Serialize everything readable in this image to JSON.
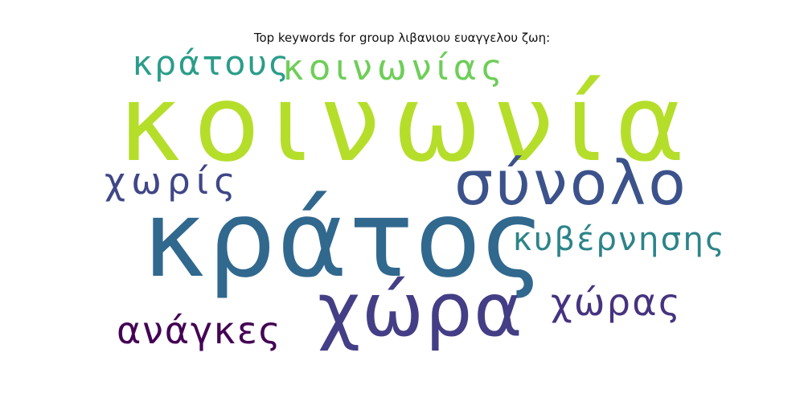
{
  "chart_data": {
    "type": "wordcloud",
    "title": "Top keywords for group λιβανιου ευαγγελου ζωη:",
    "words": [
      {
        "text": "κοινωνία",
        "color": "#b5de2b"
      },
      {
        "text": "κράτος",
        "color": "#31688e"
      },
      {
        "text": "σύνολο",
        "color": "#3b528b"
      },
      {
        "text": "χώρα",
        "color": "#433e85"
      },
      {
        "text": "κοινωνίας",
        "color": "#6ece58"
      },
      {
        "text": "κράτους",
        "color": "#2a9d8a"
      },
      {
        "text": "κυβέρνησης",
        "color": "#2c8489"
      },
      {
        "text": "χωρίς",
        "color": "#3f4788"
      },
      {
        "text": "χώρας",
        "color": "#46337f"
      },
      {
        "text": "ανάγκες",
        "color": "#440154"
      }
    ]
  }
}
